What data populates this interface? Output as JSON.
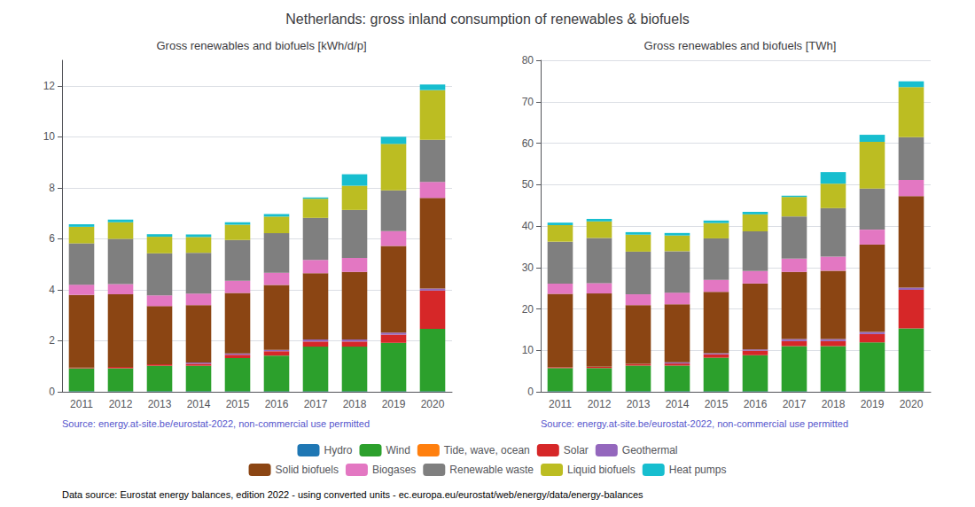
{
  "title": "Netherlands: gross inland consumption of renewables & biofuels",
  "annotations": [
    "Data source: Eurostat energy balances, edition 2022 - using converted units - ec.europa.eu/eurostat/web/energy/data/energy-balances"
  ],
  "chart_data": [
    {
      "type": "bar",
      "title": "Gross renewables and biofuels [kWh/d/p]",
      "annotations": [
        "Source: energy.at-site.be/eurostat-2022, non-commercial use permitted"
      ],
      "categories": [
        "2011",
        "2012",
        "2013",
        "2014",
        "2015",
        "2016",
        "2017",
        "2018",
        "2019",
        "2020"
      ],
      "series": [
        {
          "name": "Hydro",
          "color": "#1f77b4",
          "values": [
            0.02,
            0.02,
            0.02,
            0.02,
            0.02,
            0.02,
            0.02,
            0.02,
            0.02,
            0.02
          ]
        },
        {
          "name": "Wind",
          "color": "#2ca02c",
          "values": [
            0.9,
            0.9,
            1.0,
            1.0,
            1.3,
            1.4,
            1.75,
            1.75,
            1.9,
            2.45
          ]
        },
        {
          "name": "Tide, wave, ocean",
          "color": "#ff7f0e",
          "values": [
            0.0,
            0.0,
            0.0,
            0.0,
            0.0,
            0.0,
            0.0,
            0.0,
            0.0,
            0.0
          ]
        },
        {
          "name": "Solar",
          "color": "#d62728",
          "values": [
            0.03,
            0.05,
            0.06,
            0.08,
            0.13,
            0.17,
            0.2,
            0.2,
            0.32,
            1.5
          ]
        },
        {
          "name": "Geothermal",
          "color": "#9467bd",
          "values": [
            0.0,
            0.0,
            0.0,
            0.05,
            0.05,
            0.05,
            0.08,
            0.08,
            0.08,
            0.08
          ]
        },
        {
          "name": "Solid biofuels",
          "color": "#8b4513",
          "values": [
            2.85,
            2.85,
            2.28,
            2.25,
            2.38,
            2.55,
            2.6,
            2.65,
            3.4,
            3.55
          ]
        },
        {
          "name": "Biogases",
          "color": "#e377c2",
          "values": [
            0.4,
            0.4,
            0.42,
            0.45,
            0.47,
            0.48,
            0.52,
            0.55,
            0.58,
            0.63
          ]
        },
        {
          "name": "Renewable waste",
          "color": "#7f7f7f",
          "values": [
            1.62,
            1.78,
            1.65,
            1.6,
            1.6,
            1.55,
            1.65,
            1.88,
            1.6,
            1.65
          ]
        },
        {
          "name": "Liquid biofuels",
          "color": "#bcbd22",
          "values": [
            0.65,
            0.65,
            0.65,
            0.62,
            0.6,
            0.65,
            0.75,
            0.95,
            1.82,
            1.95
          ]
        },
        {
          "name": "Heat pumps",
          "color": "#17becf",
          "values": [
            0.1,
            0.1,
            0.1,
            0.1,
            0.1,
            0.1,
            0.05,
            0.45,
            0.28,
            0.22
          ]
        }
      ],
      "ylim": [
        0,
        13
      ],
      "yticks": [
        0,
        2,
        4,
        6,
        8,
        10,
        12
      ],
      "grid": true,
      "stacked": true,
      "legend": "bottom"
    },
    {
      "type": "bar",
      "title": "Gross renewables and biofuels [TWh]",
      "annotations": [
        "Source: energy.at-site.be/eurostat-2022, non-commercial use permitted"
      ],
      "categories": [
        "2011",
        "2012",
        "2013",
        "2014",
        "2015",
        "2016",
        "2017",
        "2018",
        "2019",
        "2020"
      ],
      "series": [
        {
          "name": "Hydro",
          "color": "#1f77b4",
          "values": [
            0.12,
            0.12,
            0.12,
            0.12,
            0.12,
            0.12,
            0.12,
            0.12,
            0.12,
            0.12
          ]
        },
        {
          "name": "Wind",
          "color": "#2ca02c",
          "values": [
            5.6,
            5.6,
            6.2,
            6.2,
            8.1,
            8.7,
            10.9,
            10.9,
            11.8,
            15.2
          ]
        },
        {
          "name": "Tide, wave, ocean",
          "color": "#ff7f0e",
          "values": [
            0.0,
            0.0,
            0.0,
            0.0,
            0.0,
            0.0,
            0.0,
            0.0,
            0.0,
            0.0
          ]
        },
        {
          "name": "Solar",
          "color": "#d62728",
          "values": [
            0.2,
            0.3,
            0.4,
            0.5,
            0.8,
            1.1,
            1.2,
            1.2,
            2.0,
            9.3
          ]
        },
        {
          "name": "Geothermal",
          "color": "#9467bd",
          "values": [
            0.0,
            0.0,
            0.0,
            0.3,
            0.3,
            0.3,
            0.5,
            0.5,
            0.5,
            0.5
          ]
        },
        {
          "name": "Solid biofuels",
          "color": "#8b4513",
          "values": [
            17.7,
            17.7,
            14.2,
            14.0,
            14.8,
            15.9,
            16.2,
            16.5,
            21.1,
            22.1
          ]
        },
        {
          "name": "Biogases",
          "color": "#e377c2",
          "values": [
            2.5,
            2.5,
            2.6,
            2.8,
            2.9,
            3.0,
            3.2,
            3.4,
            3.6,
            3.9
          ]
        },
        {
          "name": "Renewable waste",
          "color": "#7f7f7f",
          "values": [
            10.1,
            10.9,
            10.3,
            10.0,
            10.0,
            9.6,
            10.2,
            11.7,
            9.9,
            10.3
          ]
        },
        {
          "name": "Liquid biofuels",
          "color": "#bcbd22",
          "values": [
            4.0,
            4.0,
            4.1,
            3.8,
            3.7,
            4.1,
            4.7,
            5.9,
            11.3,
            12.1
          ]
        },
        {
          "name": "Heat pumps",
          "color": "#17becf",
          "values": [
            0.6,
            0.6,
            0.6,
            0.6,
            0.6,
            0.6,
            0.3,
            2.8,
            1.7,
            1.4
          ]
        }
      ],
      "ylim": [
        0,
        80
      ],
      "yticks": [
        0,
        10,
        20,
        30,
        40,
        50,
        60,
        70,
        80
      ],
      "grid": true,
      "stacked": true,
      "legend": "bottom"
    }
  ]
}
